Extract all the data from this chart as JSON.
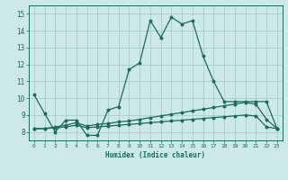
{
  "background_color": "#cce8e8",
  "grid_color": "#aacccc",
  "line_color": "#1a6b5a",
  "xlabel": "Humidex (Indice chaleur)",
  "xlim": [
    -0.5,
    23.5
  ],
  "ylim": [
    7.5,
    15.5
  ],
  "yticks": [
    8,
    9,
    10,
    11,
    12,
    13,
    14,
    15
  ],
  "xticks": [
    0,
    1,
    2,
    3,
    4,
    5,
    6,
    7,
    8,
    9,
    10,
    11,
    12,
    13,
    14,
    15,
    16,
    17,
    18,
    19,
    20,
    21,
    22,
    23
  ],
  "line1_x": [
    0,
    1,
    2,
    3,
    4,
    5,
    6,
    7,
    8,
    9,
    10,
    11,
    12,
    13,
    14,
    15,
    16,
    17,
    18,
    19,
    20,
    21,
    22,
    23
  ],
  "line1_y": [
    10.2,
    9.1,
    8.0,
    8.7,
    8.7,
    7.8,
    7.8,
    9.3,
    9.5,
    11.7,
    12.1,
    14.6,
    13.6,
    14.8,
    14.4,
    14.6,
    12.5,
    11.0,
    9.8,
    9.8,
    9.8,
    9.8,
    9.8,
    8.2
  ],
  "line2_x": [
    0,
    1,
    2,
    3,
    4,
    5,
    6,
    7,
    8,
    9,
    10,
    11,
    12,
    13,
    14,
    15,
    16,
    17,
    18,
    19,
    20,
    21,
    22,
    23
  ],
  "line2_y": [
    8.2,
    8.2,
    8.3,
    8.4,
    8.55,
    8.35,
    8.45,
    8.5,
    8.6,
    8.65,
    8.75,
    8.85,
    8.95,
    9.05,
    9.15,
    9.25,
    9.35,
    9.45,
    9.55,
    9.65,
    9.75,
    9.65,
    8.75,
    8.2
  ],
  "line3_x": [
    0,
    1,
    2,
    3,
    4,
    5,
    6,
    7,
    8,
    9,
    10,
    11,
    12,
    13,
    14,
    15,
    16,
    17,
    18,
    19,
    20,
    21,
    22,
    23
  ],
  "line3_y": [
    8.2,
    8.2,
    8.25,
    8.3,
    8.4,
    8.25,
    8.3,
    8.35,
    8.4,
    8.45,
    8.5,
    8.55,
    8.6,
    8.65,
    8.7,
    8.75,
    8.8,
    8.85,
    8.9,
    8.95,
    9.0,
    8.95,
    8.3,
    8.2
  ]
}
